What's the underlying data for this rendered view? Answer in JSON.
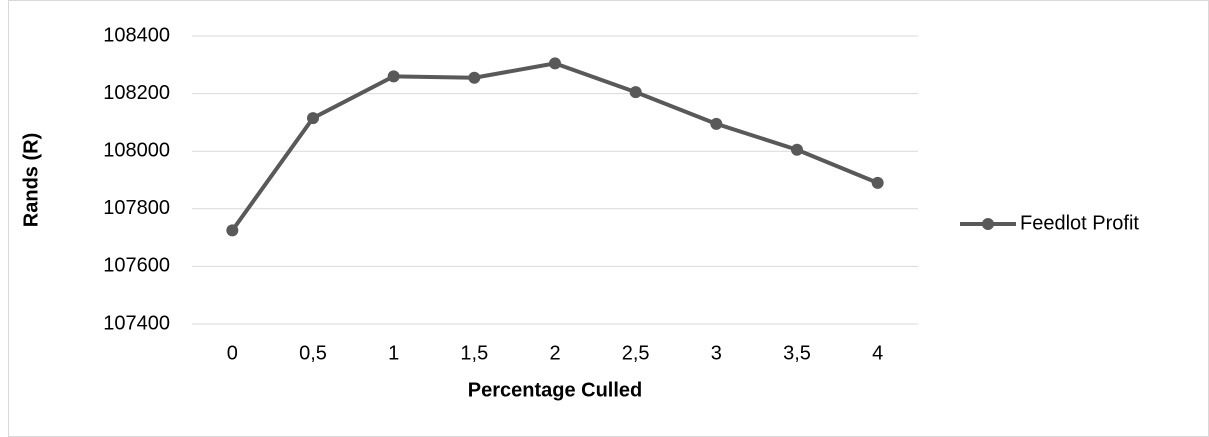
{
  "chart_data": {
    "type": "line",
    "x_label": "Percentage Culled",
    "y_label": "Rands (R)",
    "categories": [
      "0",
      "0,5",
      "1",
      "1,5",
      "2",
      "2,5",
      "3",
      "3,5",
      "4"
    ],
    "series": [
      {
        "name": "Feedlot Profit",
        "color": "#595959",
        "values": [
          107725,
          108115,
          108260,
          108255,
          108305,
          108205,
          108095,
          108005,
          107890
        ]
      }
    ],
    "ylim": [
      107400,
      108400
    ],
    "yticks": [
      107400,
      107600,
      107800,
      108000,
      108200,
      108400
    ],
    "grid": true,
    "legend": "right"
  }
}
